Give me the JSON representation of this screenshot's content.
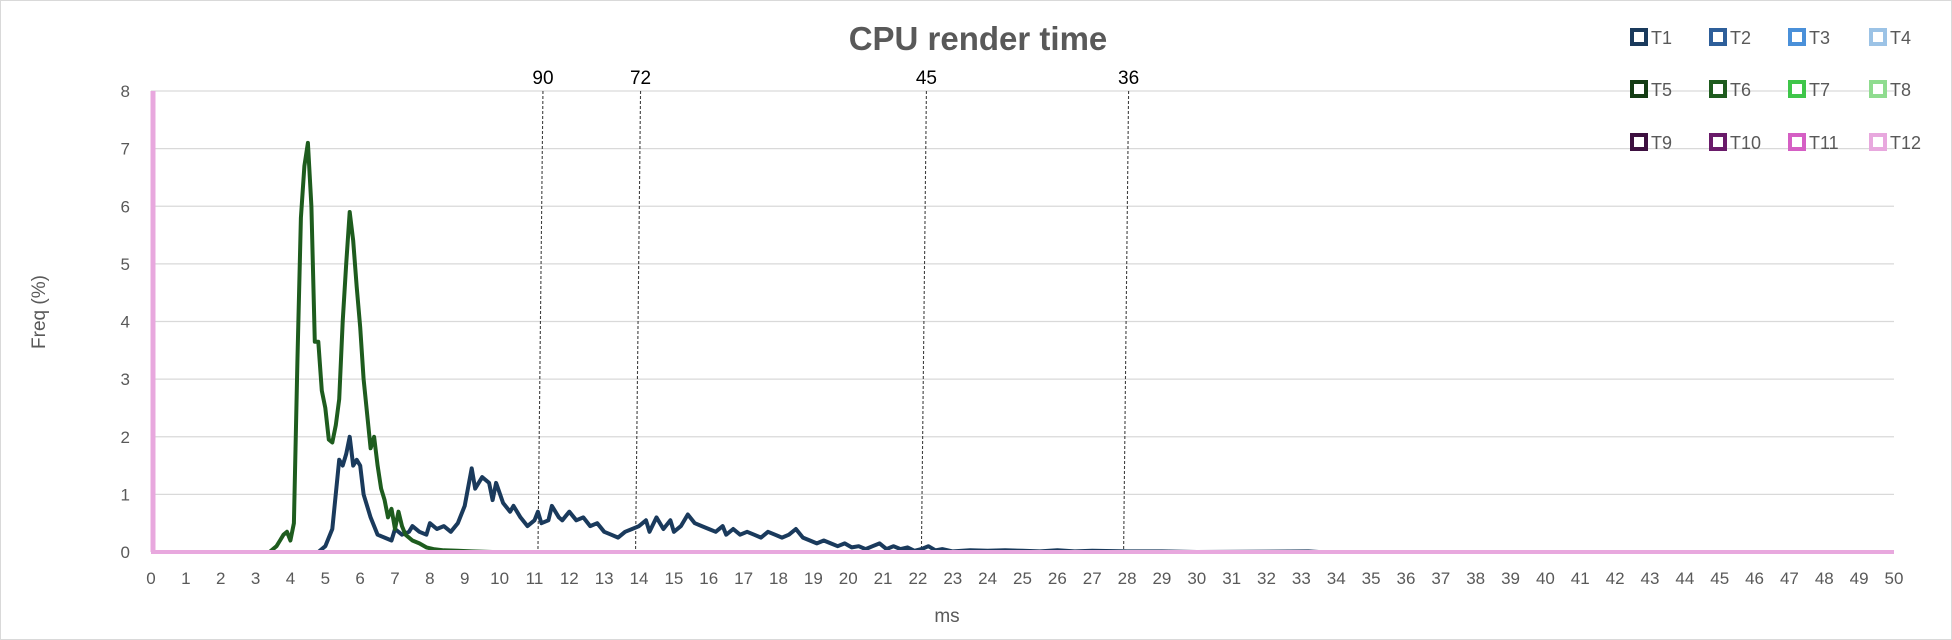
{
  "chart_data": {
    "type": "line",
    "title": "CPU render time",
    "xlabel": "ms",
    "ylabel": "Freq (%)",
    "xlim": [
      0,
      50
    ],
    "ylim": [
      0,
      8
    ],
    "xticks": [
      "0",
      "1",
      "2",
      "3",
      "4",
      "5",
      "6",
      "7",
      "8",
      "9",
      "10",
      "11",
      "12",
      "13",
      "14",
      "15",
      "16",
      "17",
      "18",
      "19",
      "20",
      "21",
      "22",
      "23",
      "24",
      "25",
      "26",
      "27",
      "28",
      "29",
      "30",
      "31",
      "32",
      "33",
      "34",
      "35",
      "36",
      "37",
      "38",
      "39",
      "40",
      "41",
      "42",
      "43",
      "44",
      "45",
      "46",
      "47",
      "48",
      "49",
      "50"
    ],
    "yticks": [
      "0",
      "1",
      "2",
      "3",
      "4",
      "5",
      "6",
      "7",
      "8"
    ],
    "grid": "horizontal",
    "legend_position": "top-right",
    "legend": [
      {
        "name": "T1",
        "color": "#1a3a5c"
      },
      {
        "name": "T2",
        "color": "#2e5f9a"
      },
      {
        "name": "T3",
        "color": "#4a90d9"
      },
      {
        "name": "T4",
        "color": "#9cc3e6"
      },
      {
        "name": "T5",
        "color": "#143d14"
      },
      {
        "name": "T6",
        "color": "#1e5c1e"
      },
      {
        "name": "T7",
        "color": "#3fc64a"
      },
      {
        "name": "T8",
        "color": "#8fdc8f"
      },
      {
        "name": "T9",
        "color": "#3d1040"
      },
      {
        "name": "T10",
        "color": "#6a1b6a"
      },
      {
        "name": "T11",
        "color": "#d55fc4"
      },
      {
        "name": "T12",
        "color": "#e8a8de"
      }
    ],
    "reference_lines": [
      {
        "label": "90",
        "x": 11.1
      },
      {
        "label": "72",
        "x": 13.9
      },
      {
        "label": "45",
        "x": 22.1
      },
      {
        "label": "36",
        "x": 27.9
      }
    ],
    "series": [
      {
        "name": "T1",
        "color": "#1a3a5c",
        "points": [
          [
            4.8,
            0
          ],
          [
            5.0,
            0.1
          ],
          [
            5.2,
            0.4
          ],
          [
            5.4,
            1.6
          ],
          [
            5.5,
            1.5
          ],
          [
            5.6,
            1.7
          ],
          [
            5.7,
            2.0
          ],
          [
            5.8,
            1.5
          ],
          [
            5.9,
            1.6
          ],
          [
            6.0,
            1.5
          ],
          [
            6.1,
            1.0
          ],
          [
            6.3,
            0.6
          ],
          [
            6.5,
            0.3
          ],
          [
            6.7,
            0.25
          ],
          [
            6.9,
            0.2
          ],
          [
            7.0,
            0.4
          ],
          [
            7.2,
            0.3
          ],
          [
            7.4,
            0.35
          ],
          [
            7.5,
            0.45
          ],
          [
            7.7,
            0.35
          ],
          [
            7.9,
            0.3
          ],
          [
            8.0,
            0.5
          ],
          [
            8.2,
            0.4
          ],
          [
            8.4,
            0.45
          ],
          [
            8.6,
            0.35
          ],
          [
            8.8,
            0.5
          ],
          [
            9.0,
            0.8
          ],
          [
            9.2,
            1.45
          ],
          [
            9.3,
            1.1
          ],
          [
            9.5,
            1.3
          ],
          [
            9.7,
            1.2
          ],
          [
            9.8,
            0.9
          ],
          [
            9.9,
            1.2
          ],
          [
            10.1,
            0.85
          ],
          [
            10.3,
            0.7
          ],
          [
            10.4,
            0.8
          ],
          [
            10.6,
            0.6
          ],
          [
            10.8,
            0.45
          ],
          [
            11.0,
            0.55
          ],
          [
            11.1,
            0.7
          ],
          [
            11.2,
            0.5
          ],
          [
            11.4,
            0.55
          ],
          [
            11.5,
            0.8
          ],
          [
            11.7,
            0.6
          ],
          [
            11.8,
            0.55
          ],
          [
            12.0,
            0.7
          ],
          [
            12.2,
            0.55
          ],
          [
            12.4,
            0.6
          ],
          [
            12.6,
            0.45
          ],
          [
            12.8,
            0.5
          ],
          [
            13.0,
            0.35
          ],
          [
            13.2,
            0.3
          ],
          [
            13.4,
            0.25
          ],
          [
            13.6,
            0.35
          ],
          [
            13.8,
            0.4
          ],
          [
            14.0,
            0.45
          ],
          [
            14.2,
            0.55
          ],
          [
            14.3,
            0.35
          ],
          [
            14.5,
            0.6
          ],
          [
            14.7,
            0.4
          ],
          [
            14.9,
            0.55
          ],
          [
            15.0,
            0.35
          ],
          [
            15.2,
            0.45
          ],
          [
            15.4,
            0.65
          ],
          [
            15.6,
            0.5
          ],
          [
            15.8,
            0.45
          ],
          [
            16.0,
            0.4
          ],
          [
            16.2,
            0.35
          ],
          [
            16.4,
            0.45
          ],
          [
            16.5,
            0.3
          ],
          [
            16.7,
            0.4
          ],
          [
            16.9,
            0.3
          ],
          [
            17.1,
            0.35
          ],
          [
            17.3,
            0.3
          ],
          [
            17.5,
            0.25
          ],
          [
            17.7,
            0.35
          ],
          [
            17.9,
            0.3
          ],
          [
            18.1,
            0.25
          ],
          [
            18.3,
            0.3
          ],
          [
            18.5,
            0.4
          ],
          [
            18.7,
            0.25
          ],
          [
            18.9,
            0.2
          ],
          [
            19.1,
            0.15
          ],
          [
            19.3,
            0.2
          ],
          [
            19.5,
            0.15
          ],
          [
            19.7,
            0.1
          ],
          [
            19.9,
            0.15
          ],
          [
            20.1,
            0.08
          ],
          [
            20.3,
            0.1
          ],
          [
            20.5,
            0.05
          ],
          [
            20.7,
            0.1
          ],
          [
            20.9,
            0.15
          ],
          [
            21.1,
            0.05
          ],
          [
            21.3,
            0.1
          ],
          [
            21.5,
            0.05
          ],
          [
            21.7,
            0.08
          ],
          [
            21.9,
            0.02
          ],
          [
            22.1,
            0.05
          ],
          [
            22.3,
            0.1
          ],
          [
            22.5,
            0.03
          ],
          [
            22.7,
            0.05
          ],
          [
            23.0,
            0.01
          ],
          [
            23.5,
            0.03
          ],
          [
            24.0,
            0.02
          ],
          [
            24.5,
            0.03
          ],
          [
            25.0,
            0.02
          ],
          [
            25.5,
            0.01
          ],
          [
            26.0,
            0.03
          ],
          [
            26.5,
            0.01
          ],
          [
            27.0,
            0.02
          ],
          [
            28.0,
            0.01
          ],
          [
            29.0,
            0.01
          ],
          [
            30.0,
            0.0
          ],
          [
            33.2,
            0.01
          ],
          [
            33.5,
            0.0
          ],
          [
            50.0,
            0.0
          ]
        ]
      },
      {
        "name": "T6",
        "color": "#1e5c1e",
        "points": [
          [
            3.4,
            0
          ],
          [
            3.6,
            0.1
          ],
          [
            3.7,
            0.2
          ],
          [
            3.8,
            0.3
          ],
          [
            3.9,
            0.35
          ],
          [
            4.0,
            0.2
          ],
          [
            4.1,
            0.5
          ],
          [
            4.2,
            3.3
          ],
          [
            4.3,
            5.8
          ],
          [
            4.4,
            6.7
          ],
          [
            4.5,
            7.1
          ],
          [
            4.6,
            6.0
          ],
          [
            4.7,
            3.65
          ],
          [
            4.8,
            3.65
          ],
          [
            4.9,
            2.8
          ],
          [
            5.0,
            2.5
          ],
          [
            5.1,
            1.95
          ],
          [
            5.2,
            1.9
          ],
          [
            5.3,
            2.2
          ],
          [
            5.4,
            2.65
          ],
          [
            5.5,
            4.0
          ],
          [
            5.6,
            5.0
          ],
          [
            5.7,
            5.9
          ],
          [
            5.8,
            5.4
          ],
          [
            5.9,
            4.6
          ],
          [
            6.0,
            3.9
          ],
          [
            6.1,
            3.0
          ],
          [
            6.2,
            2.4
          ],
          [
            6.3,
            1.8
          ],
          [
            6.4,
            2.0
          ],
          [
            6.5,
            1.5
          ],
          [
            6.6,
            1.1
          ],
          [
            6.7,
            0.9
          ],
          [
            6.8,
            0.6
          ],
          [
            6.9,
            0.75
          ],
          [
            7.0,
            0.4
          ],
          [
            7.1,
            0.7
          ],
          [
            7.2,
            0.45
          ],
          [
            7.3,
            0.3
          ],
          [
            7.5,
            0.2
          ],
          [
            7.7,
            0.15
          ],
          [
            7.9,
            0.08
          ],
          [
            8.1,
            0.05
          ],
          [
            8.4,
            0.03
          ],
          [
            8.8,
            0.02
          ],
          [
            9.2,
            0.01
          ],
          [
            9.8,
            0.0
          ],
          [
            50.0,
            0.0
          ]
        ]
      },
      {
        "name": "T12",
        "color": "#e8a8de",
        "points": [
          [
            0,
            0
          ],
          [
            50,
            0
          ]
        ]
      }
    ]
  }
}
